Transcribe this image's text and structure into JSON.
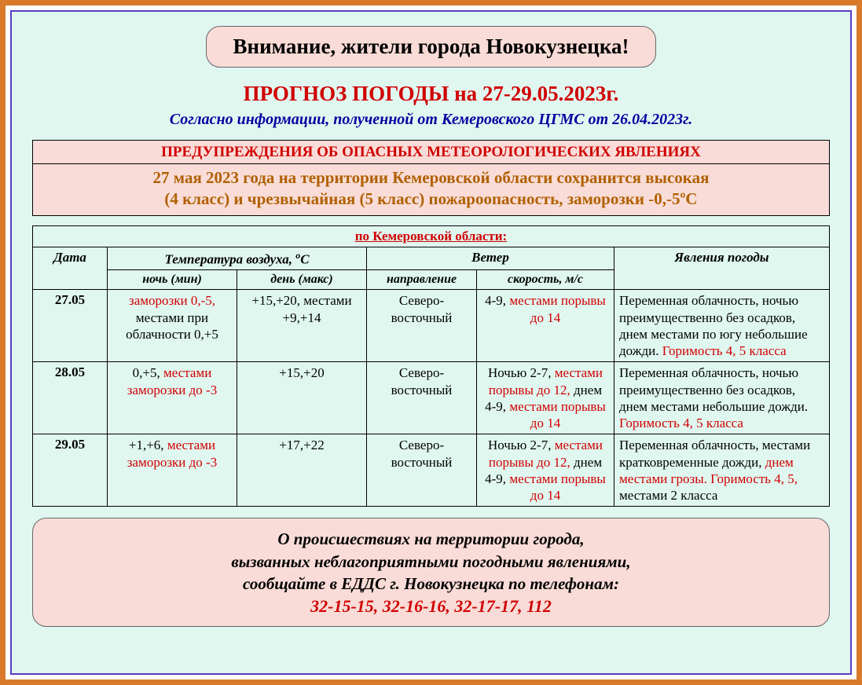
{
  "colors": {
    "outer_border": "#d87a2a",
    "inner_border": "#5a3cc4",
    "panel_bg": "#e0f7f0",
    "box_bg": "#f9dcd7",
    "danger_text": "#d00000",
    "accent_text": "#b06000",
    "source_text": "#0000a0"
  },
  "attention": "Внимание, жители города Новокузнецка!",
  "forecast_title": "ПРОГНОЗ ПОГОДЫ на 27-29.05.2023г.",
  "source_line": "Согласно информации, полученной от Кемеровского ЦГМС от 26.04.2023г.",
  "warning": {
    "header": "ПРЕДУПРЕЖДЕНИЯ ОБ ОПАСНЫХ МЕТЕОРОЛОГИЧЕСКИХ ЯВЛЕНИЯХ",
    "body_line1": "27 мая 2023 года на территории Кемеровской области сохранится высокая",
    "body_line2": "(4 класс) и чрезвычайная (5 класс) пожароопасность, заморозки -0,-5ºС"
  },
  "table": {
    "region_header": "по Кемеровской области:",
    "headers": {
      "date": "Дата",
      "temp_group": "Температура воздуха, ",
      "temp_unit_sup": "о",
      "temp_unit_rest": "С",
      "temp_night": "ночь (мин)",
      "temp_day": "день (макс)",
      "wind_group": "Ветер",
      "wind_dir": "направление",
      "wind_speed": "скорость, м/с",
      "phenomena": "Явления погоды"
    },
    "rows": [
      {
        "date": "27.05",
        "night_plain_pre": "",
        "night_red": "заморозки 0,-5,",
        "night_plain_post": " местами при облачности 0,+5",
        "day": "+15,+20, местами +9,+14",
        "wind_dir": "Северо-восточный",
        "wind_plain_pre": "4-9, ",
        "wind_red_1": "местами порывы до 14",
        "wind_mid": "",
        "wind_red_2": "",
        "pheno_plain_pre": "Переменная облачность, ночью преимущественно без осадков, днем местами по югу небольшие дожди. ",
        "pheno_red_1": "Горимость 4, 5 класса",
        "pheno_mid": "",
        "pheno_red_2": "",
        "pheno_tail": ""
      },
      {
        "date": "28.05",
        "night_plain_pre": "0,+5, ",
        "night_red": "местами заморозки до -3",
        "night_plain_post": "",
        "day": "+15,+20",
        "wind_dir": "Северо-восточный",
        "wind_plain_pre": "Ночью 2-7, ",
        "wind_red_1": "местами порывы до 12,",
        "wind_mid": " днем 4-9, ",
        "wind_red_2": "местами порывы до 14",
        "pheno_plain_pre": "Переменная облачность, ночью преимущественно без осадков, днем местами небольшие дожди. ",
        "pheno_red_1": "Горимость 4, 5 класса",
        "pheno_mid": "",
        "pheno_red_2": "",
        "pheno_tail": ""
      },
      {
        "date": "29.05",
        "night_plain_pre": "+1,+6, ",
        "night_red": "местами заморозки до -3",
        "night_plain_post": "",
        "day": "+17,+22",
        "wind_dir": "Северо-восточный",
        "wind_plain_pre": "Ночью 2-7, ",
        "wind_red_1": "местами порывы до 12,",
        "wind_mid": " днем 4-9, ",
        "wind_red_2": "местами порывы до 14",
        "pheno_plain_pre": "Переменная облачность, местами кратковременные дожди, ",
        "pheno_red_1": "днем местами грозы.",
        "pheno_mid": " ",
        "pheno_red_2": "Горимость 4, 5,",
        "pheno_tail": " местами 2 класса"
      }
    ],
    "col_widths": [
      "95px",
      "165px",
      "165px",
      "140px",
      "175px",
      "auto"
    ]
  },
  "footer": {
    "line1": "О происшествиях на территории города,",
    "line2": "вызванных неблагоприятными погодными явлениями,",
    "line3": "сообщайте в ЕДДС  г. Новокузнецка по телефонам:",
    "phones": "32-15-15,   32-16-16,    32-17-17,   112"
  }
}
